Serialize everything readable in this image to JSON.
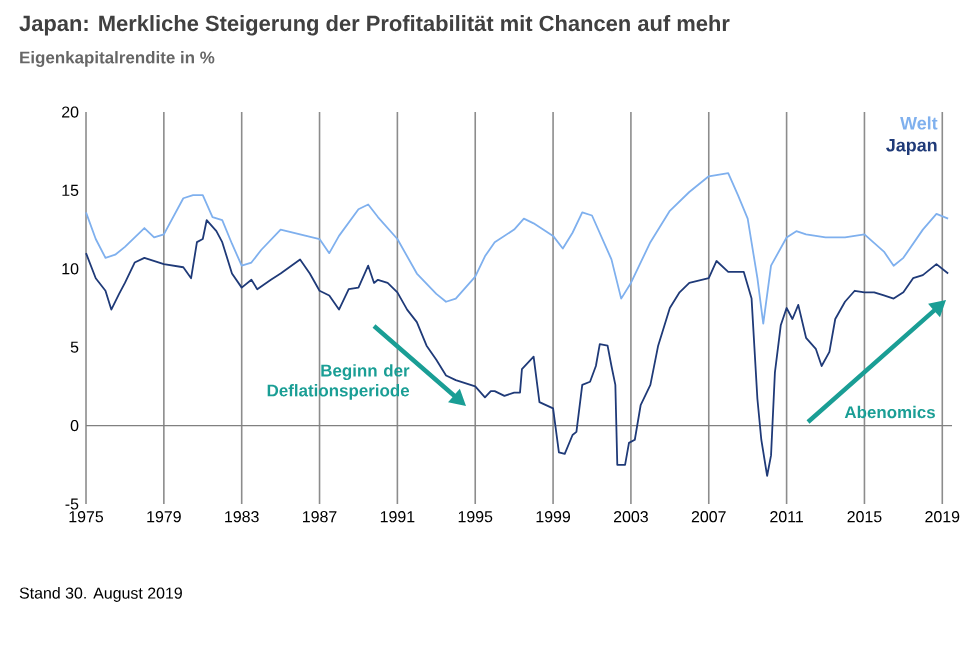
{
  "chart_data": {
    "type": "line",
    "title": "Japan: Merkliche Steigerung der Profitabilität mit Chancen auf mehr",
    "subtitle": "Eigenkapitalrendite in %",
    "xlim": [
      1975,
      2019.5
    ],
    "xticks": [
      1975,
      1979,
      1983,
      1987,
      1991,
      1995,
      1999,
      2003,
      2007,
      2011,
      2015,
      2019
    ],
    "ylim": [
      -5,
      20
    ],
    "yticks": [
      -5,
      0,
      5,
      10,
      15,
      20
    ],
    "grid": "x",
    "legend": "top right",
    "ref_lines": [
      {
        "axis": "y",
        "value": 0,
        "color": "#808080"
      }
    ],
    "series": [
      {
        "name": "Welt",
        "color": "#7fb0ee",
        "x": [
          1975,
          1975.5,
          1976,
          1976.5,
          1977,
          1978,
          1978.5,
          1979,
          1980,
          1980.5,
          1981,
          1981.5,
          1982,
          1982.5,
          1983,
          1983.5,
          1984,
          1985,
          1986,
          1987,
          1987.5,
          1988,
          1989,
          1989.5,
          1990,
          1991,
          1992,
          1993,
          1993.5,
          1994,
          1995,
          1995.5,
          1996,
          1997,
          1997.5,
          1998,
          1999,
          1999.5,
          2000,
          2000.5,
          2001,
          2002,
          2002.5,
          2003,
          2004,
          2005,
          2006,
          2007,
          2008,
          2008.5,
          2009,
          2009.5,
          2009.8,
          2010.2,
          2011,
          2011.5,
          2012,
          2013,
          2014,
          2015,
          2016,
          2016.5,
          2017,
          2018,
          2018.7,
          2019.3
        ],
        "values": [
          13.6,
          11.9,
          10.7,
          10.9,
          11.4,
          12.6,
          12.0,
          12.2,
          14.5,
          14.7,
          14.7,
          13.3,
          13.1,
          11.6,
          10.2,
          10.4,
          11.2,
          12.5,
          12.2,
          11.9,
          11.0,
          12.1,
          13.8,
          14.1,
          13.3,
          11.9,
          9.7,
          8.4,
          7.9,
          8.1,
          9.5,
          10.8,
          11.7,
          12.5,
          13.2,
          12.9,
          12.1,
          11.3,
          12.3,
          13.6,
          13.4,
          10.6,
          8.1,
          9.1,
          11.7,
          13.7,
          14.9,
          15.9,
          16.1,
          14.7,
          13.2,
          9.4,
          6.5,
          10.2,
          12.0,
          12.4,
          12.2,
          12.0,
          12.0,
          12.2,
          11.1,
          10.2,
          10.7,
          12.5,
          13.5,
          13.2
        ]
      },
      {
        "name": "Japan",
        "color": "#1f3a78",
        "x": [
          1975,
          1975.5,
          1976,
          1976.3,
          1976.7,
          1977,
          1977.5,
          1978,
          1979,
          1980,
          1980.4,
          1980.7,
          1981,
          1981.2,
          1981.7,
          1982,
          1982.5,
          1983,
          1983.5,
          1983.8,
          1984.5,
          1985,
          1986,
          1986.5,
          1987,
          1987.5,
          1988,
          1988.5,
          1989,
          1989.5,
          1989.8,
          1990,
          1990.5,
          1991,
          1991.5,
          1992,
          1992.5,
          1993,
          1993.5,
          1994,
          1995,
          1995.5,
          1995.8,
          1996,
          1996.5,
          1997,
          1997.3,
          1997.4,
          1998,
          1998.3,
          1999,
          1999.3,
          1999.6,
          2000,
          2000.2,
          2000.5,
          2000.9,
          2001.2,
          2001.4,
          2001.8,
          2002,
          2002.2,
          2002.3,
          2002.7,
          2002.9,
          2003.2,
          2003.5,
          2004,
          2004.4,
          2005,
          2005.5,
          2006,
          2007,
          2007.4,
          2008,
          2008.8,
          2009.2,
          2009.5,
          2009.7,
          2010,
          2010.2,
          2010.4,
          2010.7,
          2011,
          2011.3,
          2011.6,
          2012,
          2012.5,
          2012.8,
          2013.2,
          2013.5,
          2014,
          2014.5,
          2015,
          2015.5,
          2016,
          2016.5,
          2017,
          2017.5,
          2018,
          2018.7,
          2019.3
        ],
        "values": [
          11.0,
          9.4,
          8.6,
          7.4,
          8.4,
          9.1,
          10.4,
          10.7,
          10.3,
          10.1,
          9.4,
          11.7,
          11.9,
          13.1,
          12.4,
          11.7,
          9.7,
          8.8,
          9.3,
          8.7,
          9.3,
          9.7,
          10.6,
          9.7,
          8.6,
          8.3,
          7.4,
          8.7,
          8.8,
          10.2,
          9.1,
          9.3,
          9.1,
          8.5,
          7.4,
          6.6,
          5.1,
          4.2,
          3.2,
          2.9,
          2.5,
          1.8,
          2.2,
          2.2,
          1.9,
          2.1,
          2.1,
          3.6,
          4.4,
          1.5,
          1.1,
          -1.7,
          -1.8,
          -0.6,
          -0.4,
          2.6,
          2.8,
          3.8,
          5.2,
          5.1,
          3.8,
          2.6,
          -2.5,
          -2.5,
          -1.1,
          -0.9,
          1.3,
          2.6,
          5.1,
          7.5,
          8.5,
          9.1,
          9.4,
          10.5,
          9.8,
          9.8,
          8.1,
          1.7,
          -0.9,
          -3.2,
          -1.9,
          3.4,
          6.4,
          7.5,
          6.8,
          7.7,
          5.6,
          4.9,
          3.8,
          4.7,
          6.8,
          7.9,
          8.6,
          8.5,
          8.5,
          8.3,
          8.1,
          8.5,
          9.4,
          9.6,
          10.3,
          9.7
        ]
      }
    ],
    "annotations": [
      "Stand 30. August 2019",
      "Beginn der Deflationsperiode",
      "Abenomics"
    ]
  }
}
